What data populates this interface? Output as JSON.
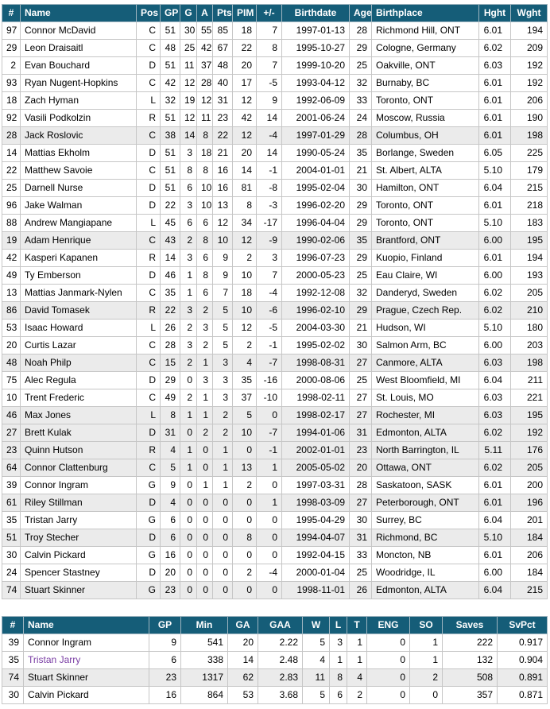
{
  "colors": {
    "header-bg": "#155d78",
    "shaded-row-bg": "#ebebeb",
    "visited-link": "#7b3fa5",
    "grid-line": "#c6c6c6"
  },
  "skater_table": {
    "headers": [
      "#",
      "Name",
      "Pos",
      "GP",
      "G",
      "A",
      "Pts",
      "PIM",
      "+/-",
      "Birthdate",
      "Age",
      "Birthplace",
      "Hght",
      "Wght"
    ],
    "col_keys": [
      "num",
      "name",
      "pos",
      "gp",
      "g",
      "a",
      "pts",
      "pim",
      "pm",
      "birthdate",
      "age",
      "birthplace",
      "hght",
      "wght"
    ],
    "rows": [
      {
        "num": "97",
        "name": "Connor McDavid",
        "pos": "C",
        "gp": "51",
        "g": "30",
        "a": "55",
        "pts": "85",
        "pim": "18",
        "pm": "7",
        "birthdate": "1997-01-13",
        "age": "28",
        "birthplace": "Richmond Hill, ONT",
        "hght": "6.01",
        "wght": "194",
        "shaded": false
      },
      {
        "num": "29",
        "name": "Leon Draisaitl",
        "pos": "C",
        "gp": "48",
        "g": "25",
        "a": "42",
        "pts": "67",
        "pim": "22",
        "pm": "8",
        "birthdate": "1995-10-27",
        "age": "29",
        "birthplace": "Cologne, Germany",
        "hght": "6.02",
        "wght": "209",
        "shaded": false
      },
      {
        "num": "2",
        "name": "Evan Bouchard",
        "pos": "D",
        "gp": "51",
        "g": "11",
        "a": "37",
        "pts": "48",
        "pim": "20",
        "pm": "7",
        "birthdate": "1999-10-20",
        "age": "25",
        "birthplace": "Oakville, ONT",
        "hght": "6.03",
        "wght": "192",
        "shaded": false
      },
      {
        "num": "93",
        "name": "Ryan Nugent-Hopkins",
        "pos": "C",
        "gp": "42",
        "g": "12",
        "a": "28",
        "pts": "40",
        "pim": "17",
        "pm": "-5",
        "birthdate": "1993-04-12",
        "age": "32",
        "birthplace": "Burnaby, BC",
        "hght": "6.01",
        "wght": "192",
        "shaded": false
      },
      {
        "num": "18",
        "name": "Zach Hyman",
        "pos": "L",
        "gp": "32",
        "g": "19",
        "a": "12",
        "pts": "31",
        "pim": "12",
        "pm": "9",
        "birthdate": "1992-06-09",
        "age": "33",
        "birthplace": "Toronto, ONT",
        "hght": "6.01",
        "wght": "206",
        "shaded": false
      },
      {
        "num": "92",
        "name": "Vasili Podkolzin",
        "pos": "R",
        "gp": "51",
        "g": "12",
        "a": "11",
        "pts": "23",
        "pim": "42",
        "pm": "14",
        "birthdate": "2001-06-24",
        "age": "24",
        "birthplace": "Moscow, Russia",
        "hght": "6.01",
        "wght": "190",
        "shaded": false
      },
      {
        "num": "28",
        "name": "Jack Roslovic",
        "pos": "C",
        "gp": "38",
        "g": "14",
        "a": "8",
        "pts": "22",
        "pim": "12",
        "pm": "-4",
        "birthdate": "1997-01-29",
        "age": "28",
        "birthplace": "Columbus, OH",
        "hght": "6.01",
        "wght": "198",
        "shaded": true
      },
      {
        "num": "14",
        "name": "Mattias Ekholm",
        "pos": "D",
        "gp": "51",
        "g": "3",
        "a": "18",
        "pts": "21",
        "pim": "20",
        "pm": "14",
        "birthdate": "1990-05-24",
        "age": "35",
        "birthplace": "Borlange, Sweden",
        "hght": "6.05",
        "wght": "225",
        "shaded": false
      },
      {
        "num": "22",
        "name": "Matthew Savoie",
        "pos": "C",
        "gp": "51",
        "g": "8",
        "a": "8",
        "pts": "16",
        "pim": "14",
        "pm": "-1",
        "birthdate": "2004-01-01",
        "age": "21",
        "birthplace": "St. Albert, ALTA",
        "hght": "5.10",
        "wght": "179",
        "shaded": false
      },
      {
        "num": "25",
        "name": "Darnell Nurse",
        "pos": "D",
        "gp": "51",
        "g": "6",
        "a": "10",
        "pts": "16",
        "pim": "81",
        "pm": "-8",
        "birthdate": "1995-02-04",
        "age": "30",
        "birthplace": "Hamilton, ONT",
        "hght": "6.04",
        "wght": "215",
        "shaded": false
      },
      {
        "num": "96",
        "name": "Jake Walman",
        "pos": "D",
        "gp": "22",
        "g": "3",
        "a": "10",
        "pts": "13",
        "pim": "8",
        "pm": "-3",
        "birthdate": "1996-02-20",
        "age": "29",
        "birthplace": "Toronto, ONT",
        "hght": "6.01",
        "wght": "218",
        "shaded": false
      },
      {
        "num": "88",
        "name": "Andrew Mangiapane",
        "pos": "L",
        "gp": "45",
        "g": "6",
        "a": "6",
        "pts": "12",
        "pim": "34",
        "pm": "-17",
        "birthdate": "1996-04-04",
        "age": "29",
        "birthplace": "Toronto, ONT",
        "hght": "5.10",
        "wght": "183",
        "shaded": false
      },
      {
        "num": "19",
        "name": "Adam Henrique",
        "pos": "C",
        "gp": "43",
        "g": "2",
        "a": "8",
        "pts": "10",
        "pim": "12",
        "pm": "-9",
        "birthdate": "1990-02-06",
        "age": "35",
        "birthplace": "Brantford, ONT",
        "hght": "6.00",
        "wght": "195",
        "shaded": true
      },
      {
        "num": "42",
        "name": "Kasperi Kapanen",
        "pos": "R",
        "gp": "14",
        "g": "3",
        "a": "6",
        "pts": "9",
        "pim": "2",
        "pm": "3",
        "birthdate": "1996-07-23",
        "age": "29",
        "birthplace": "Kuopio, Finland",
        "hght": "6.01",
        "wght": "194",
        "shaded": false
      },
      {
        "num": "49",
        "name": "Ty Emberson",
        "pos": "D",
        "gp": "46",
        "g": "1",
        "a": "8",
        "pts": "9",
        "pim": "10",
        "pm": "7",
        "birthdate": "2000-05-23",
        "age": "25",
        "birthplace": "Eau Claire, WI",
        "hght": "6.00",
        "wght": "193",
        "shaded": false
      },
      {
        "num": "13",
        "name": "Mattias Janmark-Nylen",
        "pos": "C",
        "gp": "35",
        "g": "1",
        "a": "6",
        "pts": "7",
        "pim": "18",
        "pm": "-4",
        "birthdate": "1992-12-08",
        "age": "32",
        "birthplace": "Danderyd, Sweden",
        "hght": "6.02",
        "wght": "205",
        "shaded": false
      },
      {
        "num": "86",
        "name": "David Tomasek",
        "pos": "R",
        "gp": "22",
        "g": "3",
        "a": "2",
        "pts": "5",
        "pim": "10",
        "pm": "-6",
        "birthdate": "1996-02-10",
        "age": "29",
        "birthplace": "Prague, Czech Rep.",
        "hght": "6.02",
        "wght": "210",
        "shaded": true
      },
      {
        "num": "53",
        "name": "Isaac Howard",
        "pos": "L",
        "gp": "26",
        "g": "2",
        "a": "3",
        "pts": "5",
        "pim": "12",
        "pm": "-5",
        "birthdate": "2004-03-30",
        "age": "21",
        "birthplace": "Hudson, WI",
        "hght": "5.10",
        "wght": "180",
        "shaded": false
      },
      {
        "num": "20",
        "name": "Curtis Lazar",
        "pos": "C",
        "gp": "28",
        "g": "3",
        "a": "2",
        "pts": "5",
        "pim": "2",
        "pm": "-1",
        "birthdate": "1995-02-02",
        "age": "30",
        "birthplace": "Salmon Arm, BC",
        "hght": "6.00",
        "wght": "203",
        "shaded": false
      },
      {
        "num": "48",
        "name": "Noah Philp",
        "pos": "C",
        "gp": "15",
        "g": "2",
        "a": "1",
        "pts": "3",
        "pim": "4",
        "pm": "-7",
        "birthdate": "1998-08-31",
        "age": "27",
        "birthplace": "Canmore, ALTA",
        "hght": "6.03",
        "wght": "198",
        "shaded": true
      },
      {
        "num": "75",
        "name": "Alec Regula",
        "pos": "D",
        "gp": "29",
        "g": "0",
        "a": "3",
        "pts": "3",
        "pim": "35",
        "pm": "-16",
        "birthdate": "2000-08-06",
        "age": "25",
        "birthplace": "West Bloomfield, MI",
        "hght": "6.04",
        "wght": "211",
        "shaded": false
      },
      {
        "num": "10",
        "name": "Trent Frederic",
        "pos": "C",
        "gp": "49",
        "g": "2",
        "a": "1",
        "pts": "3",
        "pim": "37",
        "pm": "-10",
        "birthdate": "1998-02-11",
        "age": "27",
        "birthplace": "St. Louis, MO",
        "hght": "6.03",
        "wght": "221",
        "shaded": false
      },
      {
        "num": "46",
        "name": "Max Jones",
        "pos": "L",
        "gp": "8",
        "g": "1",
        "a": "1",
        "pts": "2",
        "pim": "5",
        "pm": "0",
        "birthdate": "1998-02-17",
        "age": "27",
        "birthplace": "Rochester, MI",
        "hght": "6.03",
        "wght": "195",
        "shaded": true
      },
      {
        "num": "27",
        "name": "Brett Kulak",
        "pos": "D",
        "gp": "31",
        "g": "0",
        "a": "2",
        "pts": "2",
        "pim": "10",
        "pm": "-7",
        "birthdate": "1994-01-06",
        "age": "31",
        "birthplace": "Edmonton, ALTA",
        "hght": "6.02",
        "wght": "192",
        "shaded": true
      },
      {
        "num": "23",
        "name": "Quinn Hutson",
        "pos": "R",
        "gp": "4",
        "g": "1",
        "a": "0",
        "pts": "1",
        "pim": "0",
        "pm": "-1",
        "birthdate": "2002-01-01",
        "age": "23",
        "birthplace": "North Barrington, IL",
        "hght": "5.11",
        "wght": "176",
        "shaded": true
      },
      {
        "num": "64",
        "name": "Connor Clattenburg",
        "pos": "C",
        "gp": "5",
        "g": "1",
        "a": "0",
        "pts": "1",
        "pim": "13",
        "pm": "1",
        "birthdate": "2005-05-02",
        "age": "20",
        "birthplace": "Ottawa, ONT",
        "hght": "6.02",
        "wght": "205",
        "shaded": true
      },
      {
        "num": "39",
        "name": "Connor Ingram",
        "pos": "G",
        "gp": "9",
        "g": "0",
        "a": "1",
        "pts": "1",
        "pim": "2",
        "pm": "0",
        "birthdate": "1997-03-31",
        "age": "28",
        "birthplace": "Saskatoon, SASK",
        "hght": "6.01",
        "wght": "200",
        "shaded": false
      },
      {
        "num": "61",
        "name": "Riley Stillman",
        "pos": "D",
        "gp": "4",
        "g": "0",
        "a": "0",
        "pts": "0",
        "pim": "0",
        "pm": "1",
        "birthdate": "1998-03-09",
        "age": "27",
        "birthplace": "Peterborough, ONT",
        "hght": "6.01",
        "wght": "196",
        "shaded": true
      },
      {
        "num": "35",
        "name": "Tristan Jarry",
        "pos": "G",
        "gp": "6",
        "g": "0",
        "a": "0",
        "pts": "0",
        "pim": "0",
        "pm": "0",
        "birthdate": "1995-04-29",
        "age": "30",
        "birthplace": "Surrey, BC",
        "hght": "6.04",
        "wght": "201",
        "shaded": false
      },
      {
        "num": "51",
        "name": "Troy Stecher",
        "pos": "D",
        "gp": "6",
        "g": "0",
        "a": "0",
        "pts": "0",
        "pim": "8",
        "pm": "0",
        "birthdate": "1994-04-07",
        "age": "31",
        "birthplace": "Richmond, BC",
        "hght": "5.10",
        "wght": "184",
        "shaded": true
      },
      {
        "num": "30",
        "name": "Calvin Pickard",
        "pos": "G",
        "gp": "16",
        "g": "0",
        "a": "0",
        "pts": "0",
        "pim": "0",
        "pm": "0",
        "birthdate": "1992-04-15",
        "age": "33",
        "birthplace": "Moncton, NB",
        "hght": "6.01",
        "wght": "206",
        "shaded": false
      },
      {
        "num": "24",
        "name": "Spencer Stastney",
        "pos": "D",
        "gp": "20",
        "g": "0",
        "a": "0",
        "pts": "0",
        "pim": "2",
        "pm": "-4",
        "birthdate": "2000-01-04",
        "age": "25",
        "birthplace": "Woodridge, IL",
        "hght": "6.00",
        "wght": "184",
        "shaded": false
      },
      {
        "num": "74",
        "name": "Stuart Skinner",
        "pos": "G",
        "gp": "23",
        "g": "0",
        "a": "0",
        "pts": "0",
        "pim": "0",
        "pm": "0",
        "birthdate": "1998-11-01",
        "age": "26",
        "birthplace": "Edmonton, ALTA",
        "hght": "6.04",
        "wght": "215",
        "shaded": true
      }
    ]
  },
  "goalie_table": {
    "headers": [
      "#",
      "Name",
      "GP",
      "Min",
      "GA",
      "GAA",
      "W",
      "L",
      "T",
      "ENG",
      "SO",
      "Saves",
      "SvPct"
    ],
    "col_keys": [
      "num",
      "name",
      "gp",
      "min",
      "ga",
      "gaa",
      "w",
      "l",
      "t",
      "eng",
      "so",
      "saves",
      "svpct"
    ],
    "rows": [
      {
        "num": "39",
        "name": "Connor Ingram",
        "gp": "9",
        "min": "541",
        "ga": "20",
        "gaa": "2.22",
        "w": "5",
        "l": "3",
        "t": "1",
        "eng": "0",
        "so": "1",
        "saves": "222",
        "svpct": "0.917",
        "shaded": false,
        "visited": false
      },
      {
        "num": "35",
        "name": "Tristan Jarry",
        "gp": "6",
        "min": "338",
        "ga": "14",
        "gaa": "2.48",
        "w": "4",
        "l": "1",
        "t": "1",
        "eng": "0",
        "so": "1",
        "saves": "132",
        "svpct": "0.904",
        "shaded": false,
        "visited": true
      },
      {
        "num": "74",
        "name": "Stuart Skinner",
        "gp": "23",
        "min": "1317",
        "ga": "62",
        "gaa": "2.83",
        "w": "11",
        "l": "8",
        "t": "4",
        "eng": "0",
        "so": "2",
        "saves": "508",
        "svpct": "0.891",
        "shaded": true,
        "visited": false
      },
      {
        "num": "30",
        "name": "Calvin Pickard",
        "gp": "16",
        "min": "864",
        "ga": "53",
        "gaa": "3.68",
        "w": "5",
        "l": "6",
        "t": "2",
        "eng": "0",
        "so": "0",
        "saves": "357",
        "svpct": "0.871",
        "shaded": false,
        "visited": false
      }
    ]
  }
}
